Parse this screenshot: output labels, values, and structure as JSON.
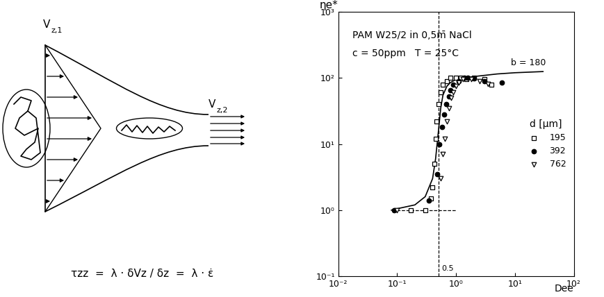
{
  "diagram": {
    "inlet_label": {
      "base": "V",
      "sub": "z,1"
    },
    "outlet_label": {
      "base": "V",
      "sub": "z,2"
    },
    "formula": "τzz  =  λ · δVz / δz  =  λ · ε̇"
  },
  "chart_data": {
    "type": "scatter",
    "text_lines": [
      "PAM W25/2 in 0,5m̄ NaCl",
      "c = 50ppm   T = 25°C"
    ],
    "xlabel": "Dee",
    "ylabel": "ηe*",
    "log": true,
    "legend": "center right",
    "legend_title": "d [µm]",
    "xlim": [
      0.01,
      100
    ],
    "xticks": [
      {
        "value": 0.01,
        "label": "10⁻²"
      },
      {
        "value": 0.1,
        "label": "10⁻¹"
      },
      {
        "value": 1,
        "label": "10⁰"
      },
      {
        "value": 10,
        "label": "10¹"
      },
      {
        "value": 100,
        "label": "10²"
      }
    ],
    "ylim": [
      0.1,
      1000
    ],
    "yticks": [
      {
        "value": 0.1,
        "label": "10⁻¹"
      },
      {
        "value": 1,
        "label": "10⁰"
      },
      {
        "value": 10,
        "label": "10¹"
      },
      {
        "value": 100,
        "label": "10²"
      },
      {
        "value": 1000,
        "label": "10³"
      }
    ],
    "series": [
      {
        "name": "195",
        "marker": "square",
        "color": "#000000",
        "x": [
          0.17,
          0.3,
          0.37,
          0.4,
          0.43,
          0.45,
          0.47,
          0.5,
          0.55,
          0.6,
          0.7,
          0.8,
          1.0,
          1.2,
          1.5,
          2.0,
          3.0,
          4.0
        ],
        "values": [
          1.0,
          1.0,
          1.5,
          2.2,
          5,
          12,
          22,
          40,
          60,
          80,
          90,
          100,
          100,
          100,
          95,
          100,
          95,
          80
        ]
      },
      {
        "name": "392",
        "marker": "filled_circle",
        "color": "#000000",
        "x": [
          0.09,
          0.35,
          0.48,
          0.52,
          0.58,
          0.62,
          0.68,
          0.75,
          0.8,
          0.9,
          1.1,
          1.4,
          1.6,
          2.0,
          3.0,
          6.0
        ],
        "values": [
          1.0,
          1.4,
          3.5,
          10,
          18,
          28,
          40,
          52,
          65,
          80,
          90,
          100,
          100,
          98,
          90,
          85
        ]
      },
      {
        "name": "762",
        "marker": "triangle_down",
        "color": "#000000",
        "x": [
          0.1,
          0.55,
          0.6,
          0.65,
          0.7,
          0.75,
          0.82,
          0.9,
          1.0,
          1.1,
          1.3,
          1.8,
          2.5,
          3.5
        ],
        "values": [
          1.0,
          3,
          7,
          12,
          22,
          35,
          50,
          60,
          75,
          85,
          95,
          95,
          90,
          82
        ]
      }
    ],
    "curve": {
      "type": "line",
      "label": "b = 180",
      "color": "#000000",
      "line_style": "solid",
      "x": [
        0.08,
        0.1,
        0.2,
        0.3,
        0.4,
        0.45,
        0.5,
        0.55,
        0.6,
        0.7,
        0.8,
        1.0,
        2.0,
        5.0,
        10.0,
        30.0
      ],
      "values": [
        1.0,
        1.05,
        1.2,
        1.6,
        3,
        6,
        15,
        35,
        55,
        75,
        85,
        95,
        105,
        115,
        120,
        125
      ]
    },
    "hline": {
      "value": 1,
      "from": 0.1,
      "to": 1,
      "line_style": "dashed"
    },
    "vline": {
      "value": 0.5,
      "label": "0.5",
      "from": 0.1,
      "to": 1000,
      "line_style": "dashed"
    }
  }
}
